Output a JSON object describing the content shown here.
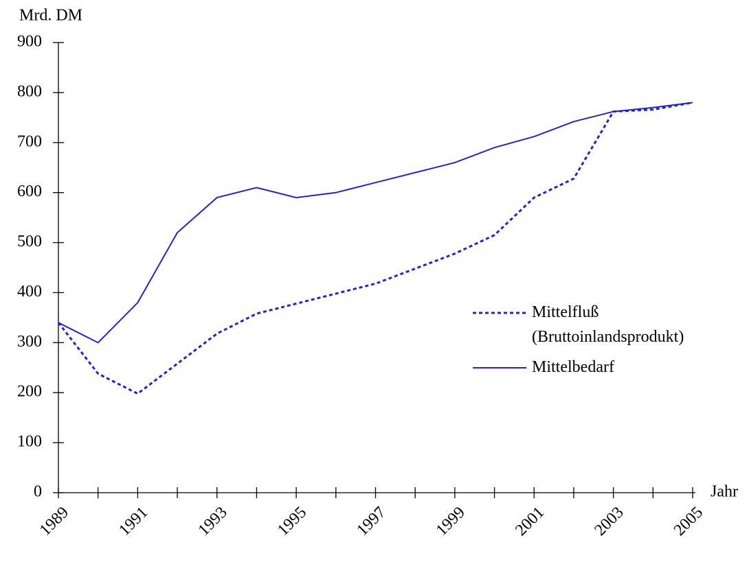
{
  "chart_data": {
    "type": "line",
    "ylabel": "Mrd. DM",
    "xlabel": "Jahr",
    "x": [
      1989,
      1990,
      1991,
      1992,
      1993,
      1994,
      1995,
      1996,
      1997,
      1998,
      1999,
      2000,
      2001,
      2002,
      2003,
      2004,
      2005
    ],
    "series": [
      {
        "name": "Mittelfluß (Bruttoinlandsprodukt)",
        "color": "#2323cc",
        "dashed": true,
        "values": [
          340,
          238,
          198,
          258,
          318,
          358,
          378,
          398,
          418,
          448,
          478,
          515,
          590,
          628,
          762,
          766,
          780
        ]
      },
      {
        "name": "Mittelbedarf",
        "color": "#2323cc",
        "dashed": false,
        "values": [
          340,
          300,
          380,
          520,
          590,
          610,
          590,
          600,
          620,
          640,
          660,
          690,
          712,
          742,
          762,
          770,
          780
        ]
      }
    ],
    "xlim": [
      1989,
      2005
    ],
    "xticks": [
      1989,
      1991,
      1993,
      1995,
      1997,
      1999,
      2001,
      2003,
      2005
    ],
    "xminorticks": [
      1990,
      1992,
      1994,
      1996,
      1998,
      2000,
      2002,
      2004
    ],
    "ylim": [
      0,
      900
    ],
    "yticks": [
      0,
      100,
      200,
      300,
      400,
      500,
      600,
      700,
      800,
      900
    ],
    "grid": false
  }
}
